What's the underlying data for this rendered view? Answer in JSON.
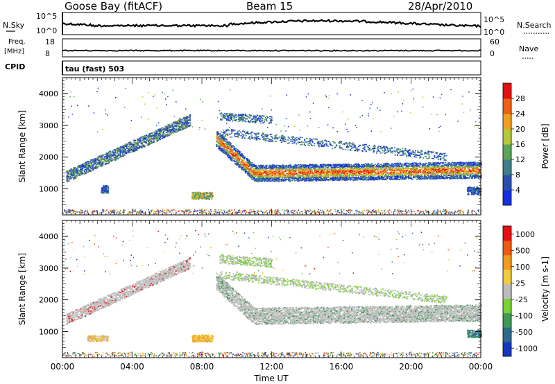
{
  "header": {
    "station": "Goose Bay (fitACF)",
    "beam": "Beam 15",
    "date": "28/Apr/2010"
  },
  "aux_panels": {
    "nsky_label": "N.Sky",
    "nsky_tick_top": "10^5",
    "nsky_tick_bottom": "10^0",
    "nsearch_label": "N.Search",
    "freq_label_1": "Freq.",
    "freq_label_2": "[MHz]",
    "freq_tick_top": "18",
    "freq_tick_bottom": "8",
    "nave_label": "Nave",
    "nave_tick_top": "60",
    "nave_tick_bottom": "0",
    "cpid_label": "CPID",
    "cpid_value": "tau (fast) 503"
  },
  "chart_data": [
    {
      "type": "heatmap",
      "name": "Power",
      "ylabel": "Slant Range [km]",
      "xlabel": "Time UT",
      "x_range_hours": [
        0,
        24
      ],
      "ylim": [
        180,
        4500
      ],
      "yticks": [
        "1000",
        "2000",
        "3000",
        "4000"
      ],
      "colorbar": {
        "label": "Power [dB]",
        "ticks": [
          "4",
          "8",
          "12",
          "16",
          "20",
          "24",
          "28"
        ],
        "colors": [
          "#1530e0",
          "#2b4fb0",
          "#3f7f86",
          "#5aa55a",
          "#b5c93a",
          "#f0a01e",
          "#f06010",
          "#e51010"
        ]
      }
    },
    {
      "type": "heatmap",
      "name": "Velocity",
      "ylabel": "Slant Range [km]",
      "xlabel": "Time UT",
      "x_range_hours": [
        0,
        24
      ],
      "ylim": [
        180,
        4500
      ],
      "yticks": [
        "1000",
        "2000",
        "3000",
        "4000"
      ],
      "colorbar": {
        "label": "Velocity [m s-1]",
        "ticks": [
          "1000",
          "500",
          "100",
          "25",
          "-25",
          "-100",
          "-500",
          "-1000"
        ],
        "colors": [
          "#1537c0",
          "#2c6a8e",
          "#3f9a56",
          "#79d336",
          "#bdbdbd",
          "#f0cc40",
          "#f09a20",
          "#f05a10",
          "#e81010"
        ]
      }
    }
  ],
  "time_axis": {
    "label": "Time UT",
    "ticks": [
      "00:00",
      "04:00",
      "08:00",
      "12:00",
      "16:00",
      "20:00",
      "00:00"
    ]
  }
}
